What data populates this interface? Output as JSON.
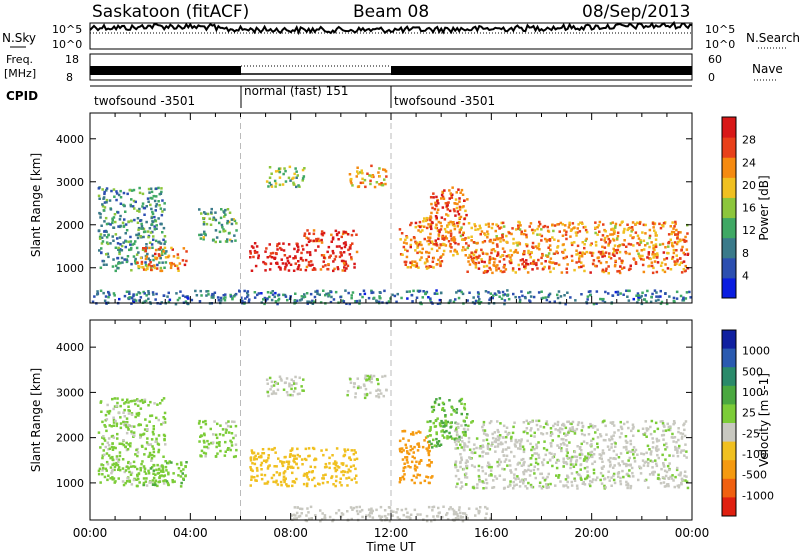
{
  "header": {
    "station": "Saskatoon (fitACF)",
    "beam": "Beam 08",
    "date": "08/Sep/2013"
  },
  "noise_panel": {
    "left_label": "N.Sky",
    "right_label": "N.Search",
    "left_ticks": [
      "10^5",
      "10^0"
    ],
    "right_ticks": [
      "10^5",
      "10^0"
    ]
  },
  "freq_panel": {
    "left_label_line1": "Freq.",
    "left_label_line2": "[MHz]",
    "left_ticks": [
      "18",
      "8"
    ],
    "right_label": "Nave",
    "right_ticks": [
      "60",
      "0"
    ]
  },
  "cpid_panel": {
    "label": "CPID",
    "modes": [
      {
        "name": "twofsound -3501",
        "start_h": 0,
        "end_h": 6
      },
      {
        "name": "normal (fast) 151",
        "start_h": 6,
        "end_h": 12
      },
      {
        "name": "twofsound -3501",
        "start_h": 12,
        "end_h": 24
      }
    ]
  },
  "chart_data": [
    {
      "type": "heatmap",
      "title": "",
      "xlabel": "Time UT",
      "ylabel": "Slant Range [km]",
      "xlim": [
        0,
        24
      ],
      "ylim": [
        180,
        4600
      ],
      "x_ticks": [
        "00:00",
        "04:00",
        "08:00",
        "12:00",
        "16:00",
        "20:00",
        "00:00"
      ],
      "y_ticks": [
        1000,
        2000,
        3000,
        4000
      ],
      "colorbar": {
        "label": "Power [dB]",
        "ticks": [
          4,
          8,
          12,
          16,
          20,
          24,
          28
        ],
        "range": [
          0,
          30
        ],
        "colors": [
          "#0a1de0",
          "#2c4fb0",
          "#3a7a8a",
          "#3fa864",
          "#8cc63c",
          "#f0c020",
          "#f58a10",
          "#e8401a",
          "#d81818"
        ]
      },
      "scatter_regions": [
        {
          "t0": 0.3,
          "t1": 3.0,
          "r0": 950,
          "r1": 2900,
          "value": 10
        },
        {
          "t0": 1.8,
          "t1": 3.8,
          "r0": 950,
          "r1": 1500,
          "value": 22
        },
        {
          "t0": 4.3,
          "t1": 5.8,
          "r0": 1600,
          "r1": 2400,
          "value": 12
        },
        {
          "t0": 6.3,
          "t1": 8.5,
          "r0": 950,
          "r1": 1600,
          "value": 29
        },
        {
          "t0": 8.5,
          "t1": 10.6,
          "r0": 950,
          "r1": 1900,
          "value": 27
        },
        {
          "t0": 7.0,
          "t1": 8.5,
          "r0": 2900,
          "r1": 3400,
          "value": 14
        },
        {
          "t0": 10.2,
          "t1": 11.8,
          "r0": 2900,
          "r1": 3400,
          "value": 20
        },
        {
          "t0": 12.3,
          "t1": 14.0,
          "r0": 1000,
          "r1": 2200,
          "value": 22
        },
        {
          "t0": 13.5,
          "t1": 15.0,
          "r0": 1500,
          "r1": 2900,
          "value": 24
        },
        {
          "t0": 14.0,
          "t1": 23.8,
          "r0": 1300,
          "r1": 2100,
          "value": 21
        },
        {
          "t0": 15.0,
          "t1": 23.8,
          "r0": 900,
          "r1": 1400,
          "value": 23
        },
        {
          "t0": 0.0,
          "t1": 24.0,
          "r0": 180,
          "r1": 500,
          "value": 8
        }
      ]
    },
    {
      "type": "heatmap",
      "title": "",
      "xlabel": "Time UT",
      "ylabel": "Slant Range [km]",
      "xlim": [
        0,
        24
      ],
      "ylim": [
        180,
        4600
      ],
      "x_ticks": [
        "00:00",
        "04:00",
        "08:00",
        "12:00",
        "16:00",
        "20:00",
        "00:00"
      ],
      "y_ticks": [
        1000,
        2000,
        3000,
        4000
      ],
      "colorbar": {
        "label": "Velocity [m s-1]",
        "ticks": [
          "1000",
          "500",
          "100",
          "25",
          "-25",
          "-100",
          "-500",
          "-1000"
        ],
        "range": [
          -1000,
          1000
        ],
        "colors": [
          "#1020a0",
          "#2a5ab0",
          "#2a8a6a",
          "#4aa840",
          "#7ccc38",
          "#c8c8c0",
          "#f0c020",
          "#f59a10",
          "#f06010",
          "#e02010"
        ]
      },
      "scatter_regions": [
        {
          "t0": 0.3,
          "t1": 3.0,
          "r0": 950,
          "r1": 2900,
          "value": 80
        },
        {
          "t0": 1.8,
          "t1": 3.8,
          "r0": 950,
          "r1": 1500,
          "value": 150
        },
        {
          "t0": 4.3,
          "t1": 5.8,
          "r0": 1600,
          "r1": 2400,
          "value": 90
        },
        {
          "t0": 6.3,
          "t1": 10.6,
          "r0": 950,
          "r1": 1800,
          "value": -300
        },
        {
          "t0": 7.0,
          "t1": 8.5,
          "r0": 2900,
          "r1": 3400,
          "value": 0
        },
        {
          "t0": 10.2,
          "t1": 11.8,
          "r0": 2900,
          "r1": 3400,
          "value": 0
        },
        {
          "t0": 12.3,
          "t1": 13.6,
          "r0": 1000,
          "r1": 2200,
          "value": -500
        },
        {
          "t0": 13.4,
          "t1": 15.0,
          "r0": 1800,
          "r1": 2900,
          "value": 200
        },
        {
          "t0": 14.5,
          "t1": 23.8,
          "r0": 900,
          "r1": 2400,
          "value": 0
        },
        {
          "t0": 8.0,
          "t1": 16.0,
          "r0": 180,
          "r1": 500,
          "value": -80
        }
      ]
    }
  ]
}
